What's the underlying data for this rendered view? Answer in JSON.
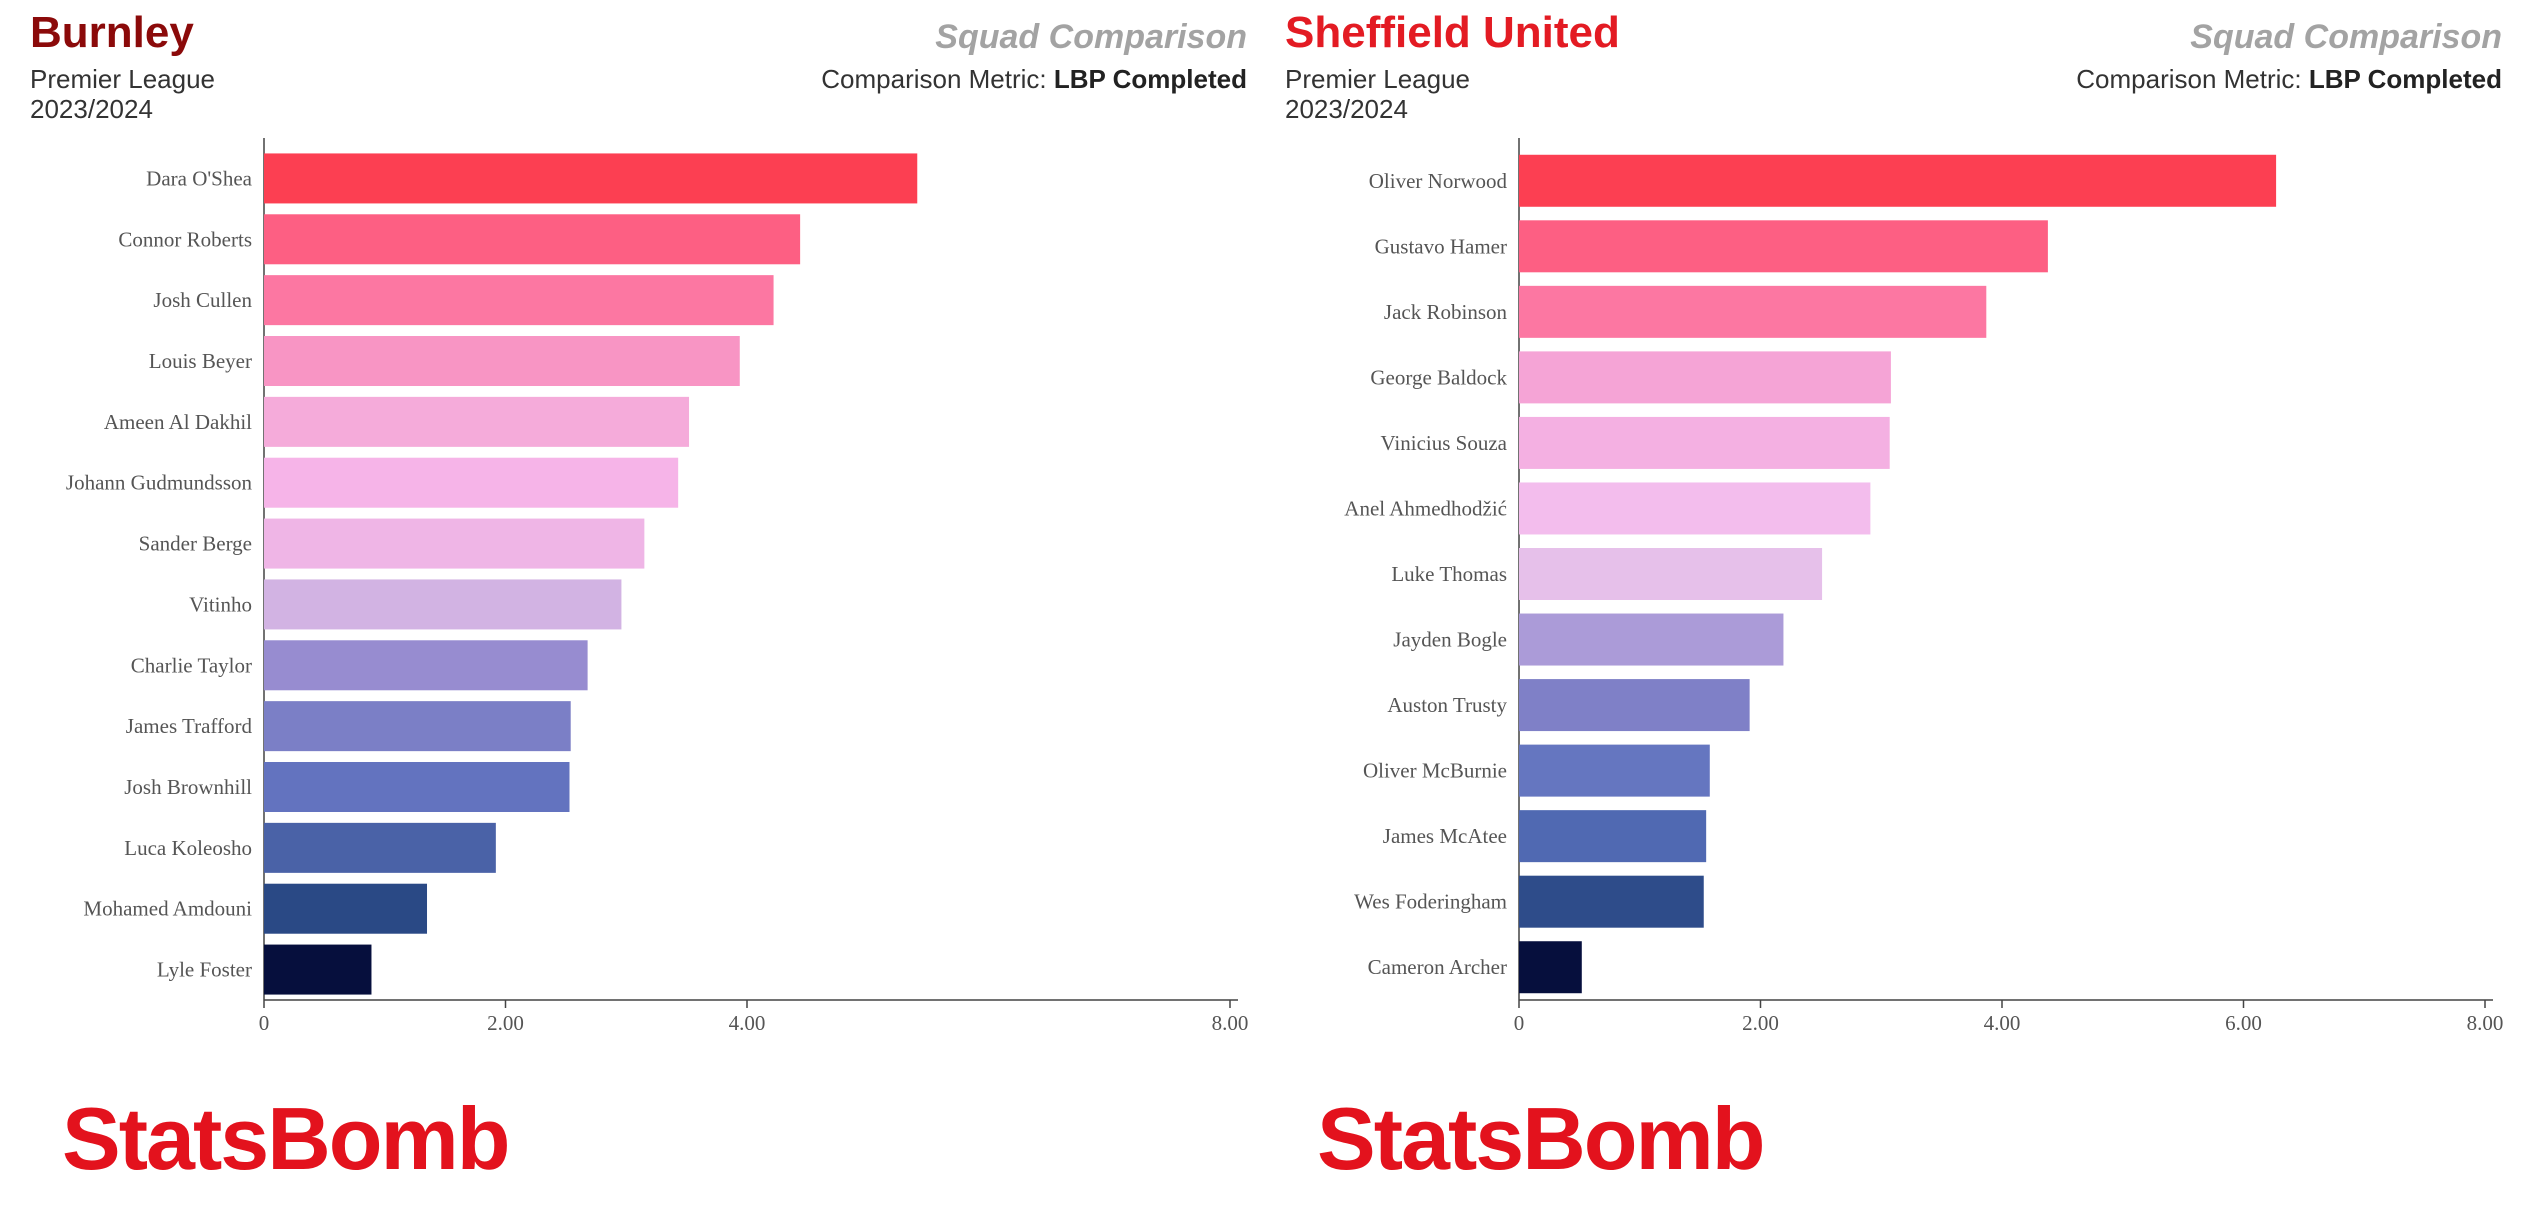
{
  "chart_data": [
    {
      "type": "bar",
      "orientation": "horizontal",
      "title": "Burnley",
      "league": "Premier League",
      "season": "2023/2024",
      "subtitle": "Squad Comparison",
      "metric_prefix": "Comparison Metric:",
      "metric_name": "LBP Completed",
      "title_color": "#8b0a0a",
      "logo_text": "StatsBomb",
      "logo_color": "#e3121d",
      "xlim": [
        0,
        8
      ],
      "xticks": [
        0,
        2,
        4,
        8
      ],
      "xtick_labels": [
        "0",
        "2.00",
        "4.00",
        "8.00"
      ],
      "categories": [
        "Dara O'Shea",
        "Connor Roberts",
        "Josh Cullen",
        "Louis Beyer",
        "Ameen Al Dakhil",
        "Johann Gudmundsson",
        "Sander Berge",
        "Vitinho",
        "Charlie Taylor",
        "James Trafford",
        "Josh Brownhill",
        "Luca Koleosho",
        "Mohamed Amdouni",
        "Lyle Foster"
      ],
      "values": [
        5.41,
        4.44,
        4.22,
        3.94,
        3.52,
        3.43,
        3.15,
        2.96,
        2.68,
        2.54,
        2.53,
        1.92,
        1.35,
        0.89
      ],
      "colors": [
        "#fc3f52",
        "#fd5f83",
        "#fc77a2",
        "#f895c4",
        "#f5abda",
        "#f6b4e8",
        "#efb5e6",
        "#d2b3e3",
        "#978cd0",
        "#7b7fc6",
        "#6373bf",
        "#4a62a7",
        "#2a4985",
        "#060f3d"
      ]
    },
    {
      "type": "bar",
      "orientation": "horizontal",
      "title": "Sheffield United",
      "league": "Premier League",
      "season": "2023/2024",
      "subtitle": "Squad Comparison",
      "metric_prefix": "Comparison Metric:",
      "metric_name": "LBP Completed",
      "title_color": "#e31b23",
      "logo_text": "StatsBomb",
      "logo_color": "#e3121d",
      "xlim": [
        0,
        8
      ],
      "xticks": [
        0,
        2,
        4,
        6,
        8
      ],
      "xtick_labels": [
        "0",
        "2.00",
        "4.00",
        "6.00",
        "8.00"
      ],
      "categories": [
        "Oliver Norwood",
        "Gustavo Hamer",
        "Jack Robinson",
        "George Baldock",
        "Vinicius Souza",
        "Anel Ahmedhodžić",
        "Luke Thomas",
        "Jayden Bogle",
        "Auston Trusty",
        "Oliver McBurnie",
        "James McAtee",
        "Wes Foderingham",
        "Cameron Archer"
      ],
      "values": [
        6.27,
        4.38,
        3.87,
        3.08,
        3.07,
        2.91,
        2.51,
        2.19,
        1.91,
        1.58,
        1.55,
        1.53,
        0.52
      ],
      "colors": [
        "#fc3f52",
        "#fd5f83",
        "#fc77a2",
        "#f5a4d6",
        "#f4b0e2",
        "#f3bded",
        "#e6c0ea",
        "#ab9bd8",
        "#7f80c7",
        "#6576c0",
        "#5069b2",
        "#2e4c8a",
        "#060f3d"
      ]
    }
  ]
}
